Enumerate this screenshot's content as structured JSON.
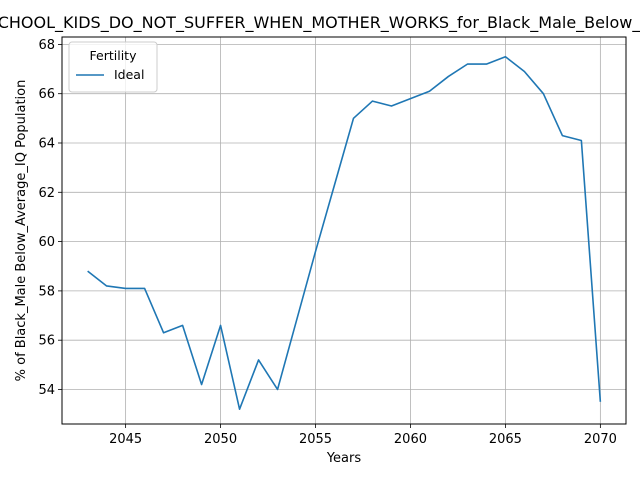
{
  "chart_data": {
    "type": "line",
    "title": "PRESCHOOL_KIDS_DO_NOT_SUFFER_WHEN_MOTHER_WORKS_for_Black_Male_Below_Average_IQ",
    "xlabel": "Years",
    "ylabel": "% of Black_Male Below_Average_IQ Population",
    "xlim": [
      2041.65,
      2071.35
    ],
    "ylim": [
      52.6,
      68.3
    ],
    "xticks": [
      2045,
      2050,
      2055,
      2060,
      2065,
      2070
    ],
    "yticks": [
      54,
      56,
      58,
      60,
      62,
      64,
      66,
      68
    ],
    "grid": true,
    "legend": {
      "title": "Fertility",
      "placement": "top-left"
    },
    "series": [
      {
        "name": "Ideal",
        "color": "#1f77b4",
        "x": [
          2043,
          2044,
          2045,
          2046,
          2047,
          2048,
          2049,
          2050,
          2051,
          2052,
          2053,
          2054,
          2055,
          2056,
          2057,
          2058,
          2059,
          2060,
          2061,
          2062,
          2063,
          2064,
          2065,
          2066,
          2067,
          2068,
          2069,
          2070
        ],
        "y": [
          58.8,
          58.2,
          58.1,
          58.1,
          56.3,
          56.6,
          54.2,
          56.6,
          53.2,
          55.2,
          54.0,
          56.8,
          59.6,
          62.3,
          65.0,
          65.7,
          65.5,
          65.8,
          66.1,
          66.7,
          67.2,
          67.2,
          67.5,
          66.9,
          66.0,
          64.3,
          64.1,
          53.5
        ]
      }
    ]
  }
}
